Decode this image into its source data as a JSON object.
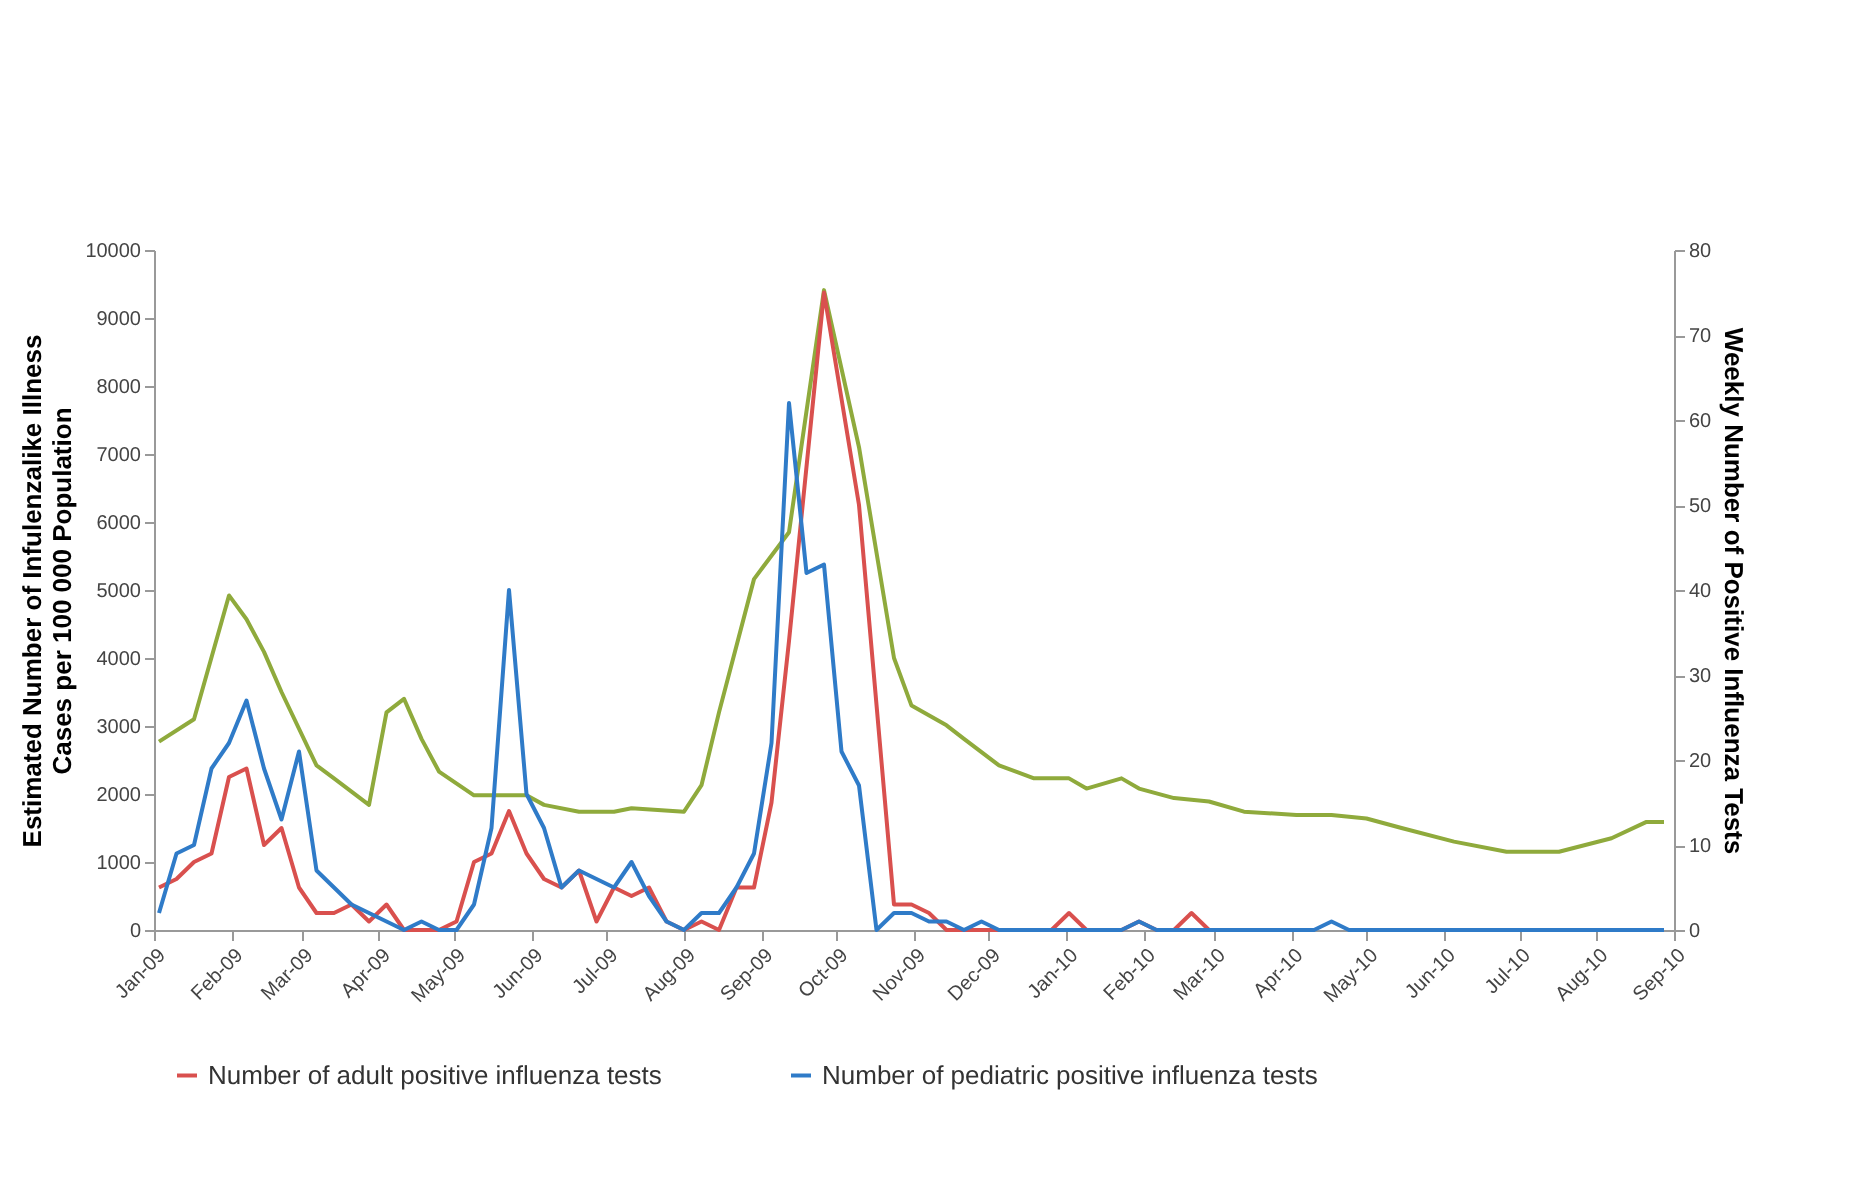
{
  "chart_data": {
    "type": "line",
    "ylabel": "Estimated Number of Infulenzalike Illness Cases per 100 000 Population",
    "y2label": "Weekly Number of Positive Influenza Tests",
    "xlim": [
      "2009-01-01",
      "2010-09-01"
    ],
    "xticks": [
      {
        "value": "2009-01-01",
        "label": "Jan-09"
      },
      {
        "value": "2009-02-01",
        "label": "Feb-09"
      },
      {
        "value": "2009-03-01",
        "label": "Mar-09"
      },
      {
        "value": "2009-04-01",
        "label": "Apr-09"
      },
      {
        "value": "2009-05-01",
        "label": "May-09"
      },
      {
        "value": "2009-06-01",
        "label": "Jun-09"
      },
      {
        "value": "2009-07-01",
        "label": "Jul-09"
      },
      {
        "value": "2009-08-01",
        "label": "Aug-09"
      },
      {
        "value": "2009-09-01",
        "label": "Sep-09"
      },
      {
        "value": "2009-10-01",
        "label": "Oct-09"
      },
      {
        "value": "2009-11-01",
        "label": "Nov-09"
      },
      {
        "value": "2009-12-01",
        "label": "Dec-09"
      },
      {
        "value": "2010-01-01",
        "label": "Jan-10"
      },
      {
        "value": "2010-02-01",
        "label": "Feb-10"
      },
      {
        "value": "2010-03-01",
        "label": "Mar-10"
      },
      {
        "value": "2010-04-01",
        "label": "Apr-10"
      },
      {
        "value": "2010-05-01",
        "label": "May-10"
      },
      {
        "value": "2010-06-01",
        "label": "Jun-10"
      },
      {
        "value": "2010-07-01",
        "label": "Jul-10"
      },
      {
        "value": "2010-08-01",
        "label": "Aug-10"
      },
      {
        "value": "2010-09-01",
        "label": "Sep-10"
      }
    ],
    "ylim": [
      0,
      10000
    ],
    "yticks": [
      0,
      1000,
      2000,
      3000,
      4000,
      5000,
      6000,
      7000,
      8000,
      9000,
      10000
    ],
    "y2lim": [
      0,
      80
    ],
    "y2ticks": [
      0,
      10,
      20,
      30,
      40,
      50,
      60,
      70,
      80
    ],
    "grid": false,
    "legend": "bottom",
    "marker": "none",
    "line_style": "solid",
    "series": [
      {
        "color": "#8faa3c",
        "x": [
          "2009-01-03",
          "2009-01-17",
          "2009-01-31",
          "2009-02-07",
          "2009-02-14",
          "2009-02-21",
          "2009-03-07",
          "2009-03-14",
          "2009-03-28",
          "2009-04-04",
          "2009-04-11",
          "2009-04-18",
          "2009-04-25",
          "2009-05-09",
          "2009-05-30",
          "2009-06-06",
          "2009-06-20",
          "2009-07-04",
          "2009-07-11",
          "2009-08-01",
          "2009-08-08",
          "2009-08-15",
          "2009-08-29",
          "2009-09-12",
          "2009-09-26",
          "2009-10-10",
          "2009-10-24",
          "2009-10-31",
          "2009-11-14",
          "2009-11-21",
          "2009-12-05",
          "2009-12-19",
          "2010-01-02",
          "2010-01-09",
          "2010-01-23",
          "2010-01-30",
          "2010-02-13",
          "2010-02-27",
          "2010-03-13",
          "2010-04-03",
          "2010-04-17",
          "2010-05-01",
          "2010-05-15",
          "2010-06-05",
          "2010-06-26",
          "2010-07-17",
          "2010-08-07",
          "2010-08-21",
          "2010-08-28"
        ],
        "values": [
          2770,
          3100,
          4920,
          4570,
          4090,
          3500,
          2420,
          2230,
          1840,
          3200,
          3400,
          2810,
          2330,
          1980,
          1980,
          1840,
          1740,
          1740,
          1790,
          1740,
          2130,
          3200,
          5160,
          5850,
          9410,
          7100,
          4000,
          3300,
          3010,
          2810,
          2420,
          2230,
          2230,
          2080,
          2230,
          2080,
          1940,
          1890,
          1740,
          1690,
          1690,
          1640,
          1500,
          1300,
          1150,
          1150,
          1350,
          1590,
          1590
        ]
      },
      {
        "name": "Number of adult positive influenza tests",
        "color": "#d9504e",
        "axis": "y2",
        "x": [
          "2009-01-03",
          "2009-01-10",
          "2009-01-17",
          "2009-01-24",
          "2009-01-31",
          "2009-02-07",
          "2009-02-14",
          "2009-02-21",
          "2009-02-28",
          "2009-03-07",
          "2009-03-14",
          "2009-03-21",
          "2009-03-28",
          "2009-04-04",
          "2009-04-11",
          "2009-04-25",
          "2009-05-02",
          "2009-05-09",
          "2009-05-16",
          "2009-05-23",
          "2009-05-30",
          "2009-06-06",
          "2009-06-13",
          "2009-06-20",
          "2009-06-27",
          "2009-07-04",
          "2009-07-11",
          "2009-07-18",
          "2009-07-25",
          "2009-08-01",
          "2009-08-08",
          "2009-08-15",
          "2009-08-22",
          "2009-08-29",
          "2009-09-05",
          "2009-09-12",
          "2009-09-26",
          "2009-10-10",
          "2009-10-24",
          "2009-10-31",
          "2009-11-07",
          "2009-11-14",
          "2009-12-26",
          "2010-01-02",
          "2010-01-09",
          "2010-01-23",
          "2010-01-30",
          "2010-02-06",
          "2010-02-13",
          "2010-02-20",
          "2010-02-27"
        ],
        "values": [
          5,
          6,
          8,
          9,
          18,
          19,
          10,
          12,
          5,
          2,
          2,
          3,
          1,
          3,
          0,
          0,
          1,
          8,
          9,
          14,
          9,
          6,
          5,
          7,
          1,
          5,
          4,
          5,
          1,
          0,
          1,
          0,
          5,
          5,
          15,
          34,
          75,
          50,
          3,
          3,
          2,
          0,
          0,
          2,
          0,
          0,
          1,
          0,
          0,
          2,
          0
        ]
      },
      {
        "name": "Number of pediatric positive influenza tests",
        "color": "#2f7bc8",
        "axis": "y2",
        "x": [
          "2009-01-03",
          "2009-01-10",
          "2009-01-17",
          "2009-01-24",
          "2009-01-31",
          "2009-02-07",
          "2009-02-14",
          "2009-02-21",
          "2009-02-28",
          "2009-03-07",
          "2009-03-14",
          "2009-03-21",
          "2009-03-28",
          "2009-04-04",
          "2009-04-11",
          "2009-04-18",
          "2009-04-25",
          "2009-05-02",
          "2009-05-09",
          "2009-05-16",
          "2009-05-23",
          "2009-05-30",
          "2009-06-06",
          "2009-06-13",
          "2009-06-20",
          "2009-06-27",
          "2009-07-04",
          "2009-07-11",
          "2009-07-18",
          "2009-07-25",
          "2009-08-01",
          "2009-08-08",
          "2009-08-15",
          "2009-08-22",
          "2009-08-29",
          "2009-09-05",
          "2009-09-12",
          "2009-09-19",
          "2009-09-26",
          "2009-10-03",
          "2009-10-10",
          "2009-10-17",
          "2009-10-24",
          "2009-10-31",
          "2009-11-07",
          "2009-11-14",
          "2009-11-21",
          "2009-11-28",
          "2009-12-05",
          "2010-01-23",
          "2010-01-30",
          "2010-02-06",
          "2010-04-10",
          "2010-04-17",
          "2010-04-24",
          "2010-08-28"
        ],
        "values": [
          2,
          9,
          10,
          19,
          22,
          27,
          19,
          13,
          21,
          7,
          5,
          3,
          2,
          1,
          0,
          1,
          0,
          0,
          3,
          12,
          40,
          16,
          12,
          5,
          7,
          6,
          5,
          8,
          4,
          1,
          0,
          2,
          2,
          5,
          9,
          22,
          62,
          42,
          43,
          21,
          17,
          0,
          2,
          2,
          1,
          1,
          0,
          1,
          0,
          0,
          1,
          0,
          0,
          1,
          0,
          0
        ]
      }
    ]
  }
}
